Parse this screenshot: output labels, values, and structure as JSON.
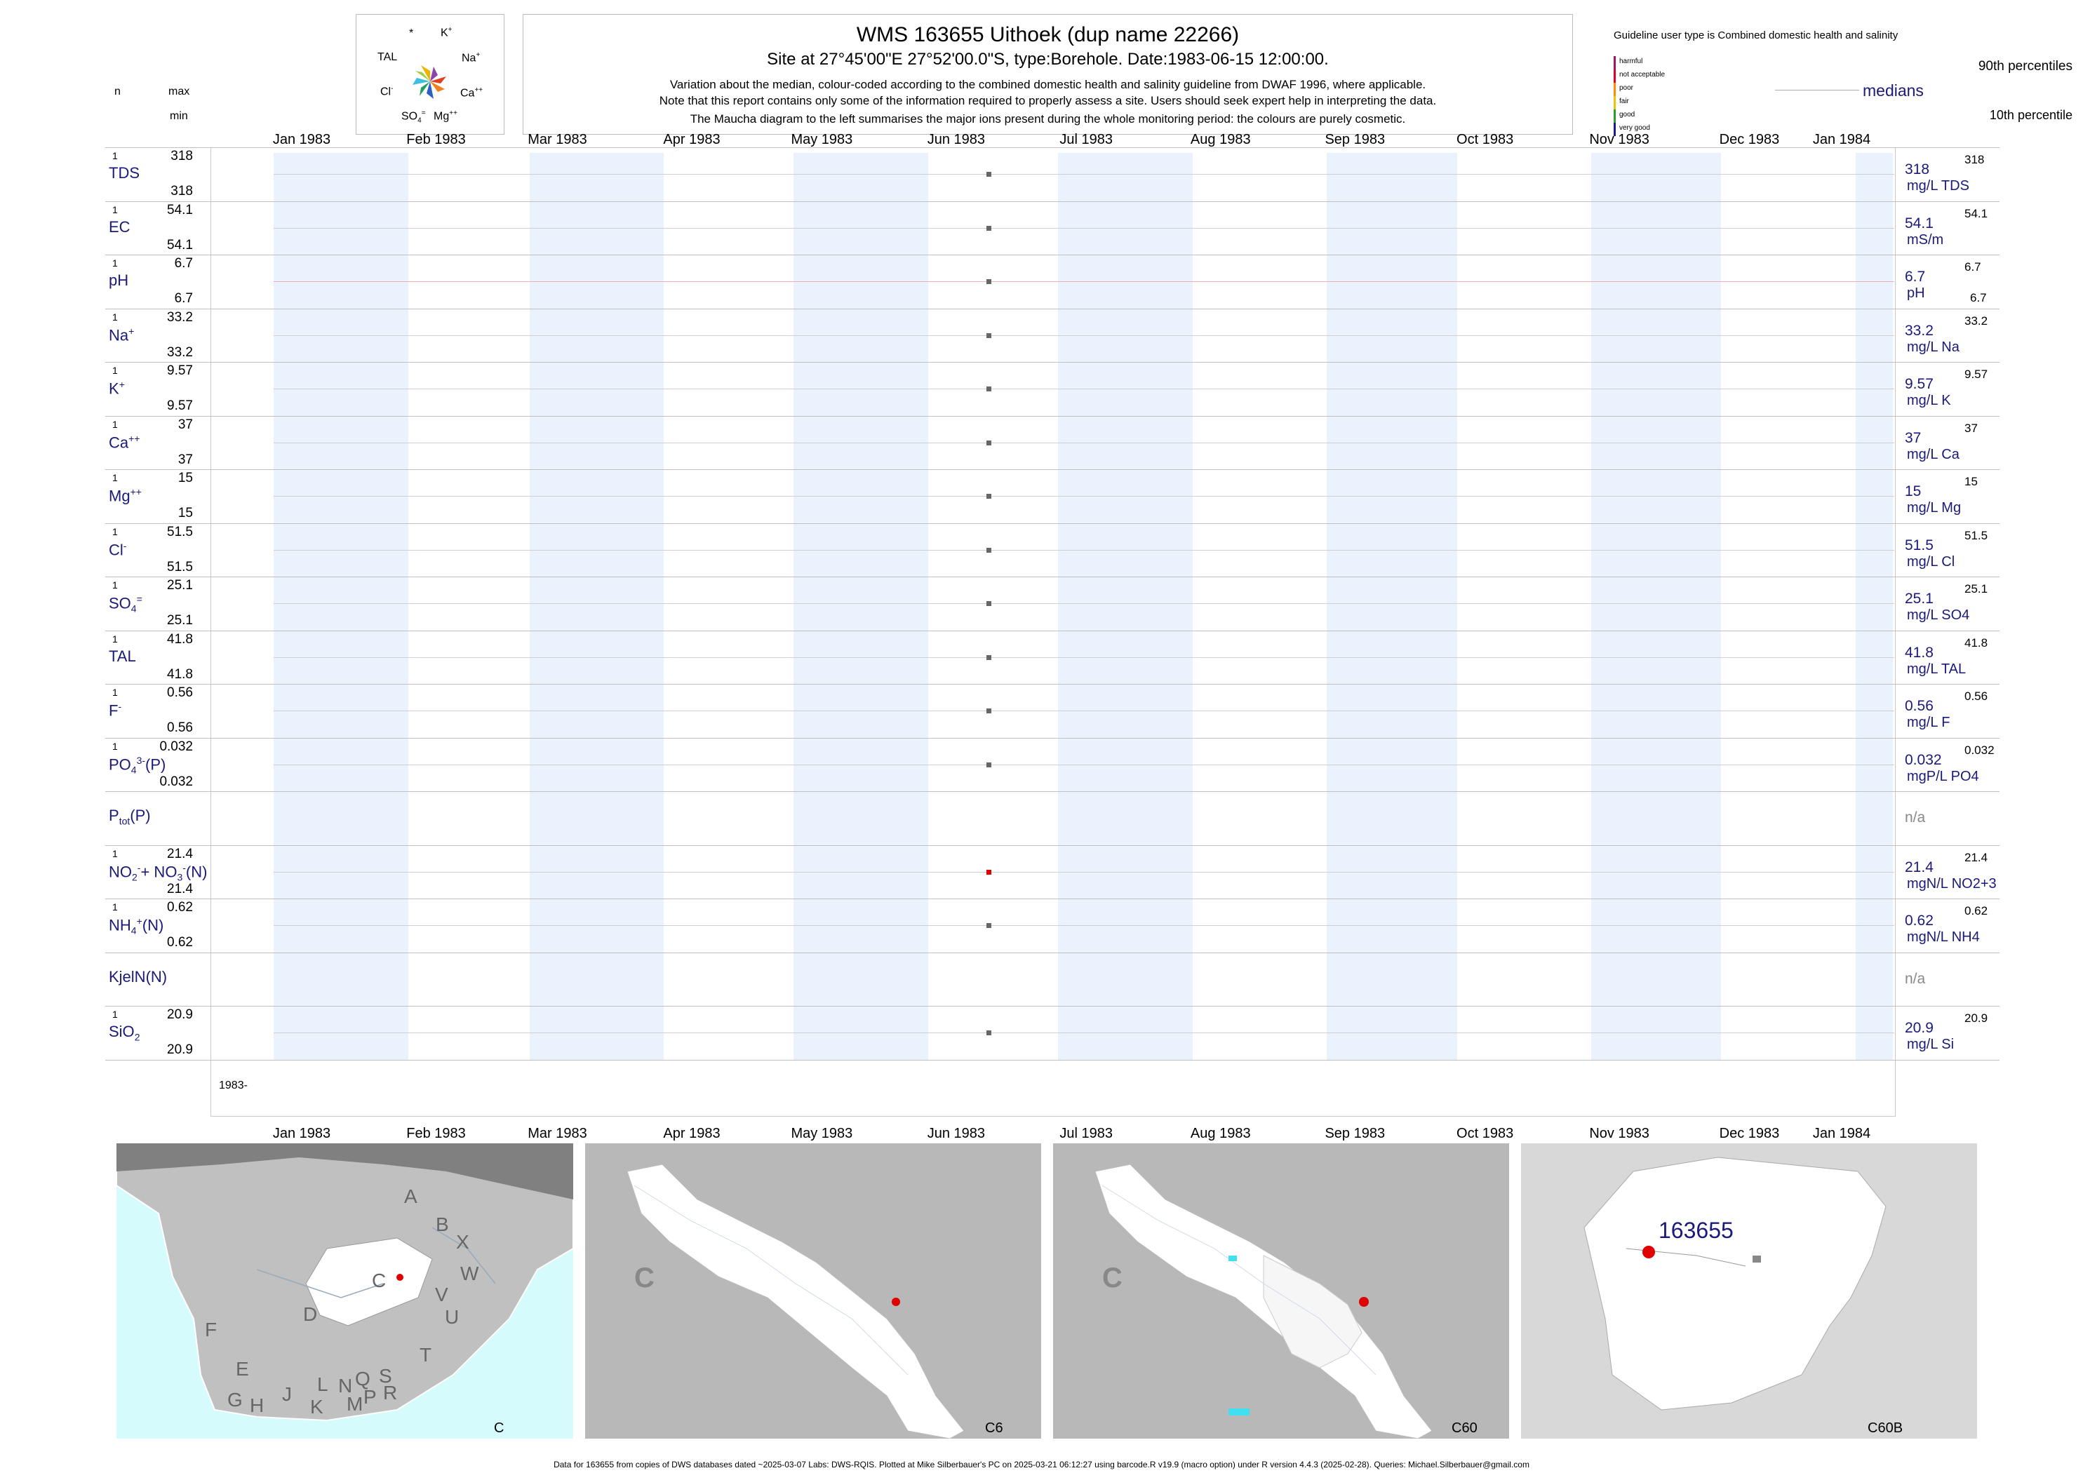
{
  "header": {
    "title": "WMS 163655  Uithoek (dup name 22266)",
    "subtitle": "Site at 27°45'00\"E 27°52'00.0\"S, type:Borehole. Date:1983-06-15 12:00:00.",
    "note1": "Variation about the median,  colour-coded according to the combined domestic health and salinity guideline from DWAF 1996, where applicable.",
    "note2": "Note that this report contains only some of the information required to properly assess a site. Users should seek expert help in interpreting the data.",
    "note3": "The Maucha diagram to the left summarises the major ions present during the whole monitoring period: the colours are purely cosmetic."
  },
  "left_header": {
    "n": "n",
    "max": "max",
    "min": "min"
  },
  "maucha": {
    "labels": {
      "star": "*",
      "k": "K",
      "k_sup": "+",
      "tal": "TAL",
      "na": "Na",
      "na_sup": "+",
      "cl": "Cl",
      "cl_sup": "-",
      "ca": "Ca",
      "ca_sup": "++",
      "so4": "SO",
      "so4_sub": "4",
      "so4_sup": "=",
      "mg": "Mg",
      "mg_sup": "++"
    }
  },
  "legend": {
    "title": "Guideline user type is Combined domestic health and salinity",
    "categories": [
      "harmful",
      "not acceptable",
      "poor",
      "fair",
      "good",
      "very good"
    ],
    "category_colors": [
      "#a01464",
      "#e0002a",
      "#ff8c00",
      "#e6c800",
      "#2aa02a",
      "#1a1aa0"
    ],
    "p90": "90th percentiles",
    "medians": "medians",
    "p10": "10th percentile"
  },
  "chart_data": {
    "type": "scatter",
    "x_axis": {
      "ticks": [
        "Jan 1983",
        "Feb 1983",
        "Mar 1983",
        "Apr 1983",
        "May 1983",
        "Jun 1983",
        "Jul 1983",
        "Aug 1983",
        "Sep 1983",
        "Oct 1983",
        "Nov 1983",
        "Dec 1983",
        "Jan 1984"
      ],
      "range": [
        "1983-01-01",
        "1984-01-01"
      ]
    },
    "sample_date": "1983-06-15",
    "bottom_label": "1983-",
    "rows": [
      {
        "id": "tds",
        "label": "TDS",
        "n": "1",
        "max": "318",
        "min": "318",
        "value": "318",
        "unit": "mg/L TDS",
        "rmax": "318",
        "rmin": "",
        "color": "#666666"
      },
      {
        "id": "ec",
        "label": "EC",
        "n": "1",
        "max": "54.1",
        "min": "54.1",
        "value": "54.1",
        "unit": "mS/m",
        "rmax": "54.1",
        "rmin": "",
        "color": "#666666"
      },
      {
        "id": "ph",
        "label": "pH",
        "n": "1",
        "max": "6.7",
        "min": "6.7",
        "value": "6.7",
        "unit": "pH",
        "rmax": "6.7",
        "rmin": "6.7",
        "color": "#666666"
      },
      {
        "id": "na",
        "label": "Na",
        "label_sup": "+",
        "n": "1",
        "max": "33.2",
        "min": "33.2",
        "value": "33.2",
        "unit": "mg/L Na",
        "rmax": "33.2",
        "rmin": "",
        "color": "#666666"
      },
      {
        "id": "k",
        "label": "K",
        "label_sup": "+",
        "n": "1",
        "max": "9.57",
        "min": "9.57",
        "value": "9.57",
        "unit": "mg/L K",
        "rmax": "9.57",
        "rmin": "",
        "color": "#666666"
      },
      {
        "id": "ca",
        "label": "Ca",
        "label_sup": "++",
        "n": "1",
        "max": "37",
        "min": "37",
        "value": "37",
        "unit": "mg/L Ca",
        "rmax": "37",
        "rmin": "",
        "color": "#666666"
      },
      {
        "id": "mg",
        "label": "Mg",
        "label_sup": "++",
        "n": "1",
        "max": "15",
        "min": "15",
        "value": "15",
        "unit": "mg/L Mg",
        "rmax": "15",
        "rmin": "",
        "color": "#666666"
      },
      {
        "id": "cl",
        "label": "Cl",
        "label_sup": "-",
        "n": "1",
        "max": "51.5",
        "min": "51.5",
        "value": "51.5",
        "unit": "mg/L Cl",
        "rmax": "51.5",
        "rmin": "",
        "color": "#666666"
      },
      {
        "id": "so4",
        "label": "SO",
        "label_sub": "4",
        "label_sup": "=",
        "n": "1",
        "max": "25.1",
        "min": "25.1",
        "value": "25.1",
        "unit": "mg/L SO4",
        "rmax": "25.1",
        "rmin": "",
        "color": "#666666"
      },
      {
        "id": "tal",
        "label": "TAL",
        "n": "1",
        "max": "41.8",
        "min": "41.8",
        "value": "41.8",
        "unit": "mg/L TAL",
        "rmax": "41.8",
        "rmin": "",
        "color": "#666666"
      },
      {
        "id": "f",
        "label": "F",
        "label_sup": "-",
        "n": "1",
        "max": "0.56",
        "min": "0.56",
        "value": "0.56",
        "unit": "mg/L F",
        "rmax": "0.56",
        "rmin": "",
        "color": "#666666"
      },
      {
        "id": "po4",
        "label": "PO",
        "label_sub": "4",
        "label_sup": "3-",
        "label_tail": "(P)",
        "n": "1",
        "max": "0.032",
        "min": "0.032",
        "value": "0.032",
        "unit": "mgP/L PO4",
        "rmax": "0.032",
        "rmin": "",
        "color": "#666666"
      },
      {
        "id": "ptot",
        "label": "P",
        "label_sub": "tot",
        "label_tail": "(P)",
        "n": "",
        "max": "",
        "min": "",
        "value": "n/a",
        "unit": "",
        "rmax": "",
        "rmin": "",
        "color": ""
      },
      {
        "id": "no3",
        "label": "NO",
        "label_sub": "2",
        "label_sup": "-",
        "label_tail": "+ NO",
        "label_sub2": "3",
        "label_sup2": "-",
        "label_tail2": "(N)",
        "n": "1",
        "max": "21.4",
        "min": "21.4",
        "value": "21.4",
        "unit": "mgN/L NO2+3",
        "rmax": "21.4",
        "rmin": "",
        "color": "#e00000"
      },
      {
        "id": "nh4",
        "label": "NH",
        "label_sub": "4",
        "label_sup": "+",
        "label_tail": "(N)",
        "n": "1",
        "max": "0.62",
        "min": "0.62",
        "value": "0.62",
        "unit": "mgN/L NH4",
        "rmax": "0.62",
        "rmin": "",
        "color": "#666666"
      },
      {
        "id": "kjel",
        "label": "KjelN(N)",
        "n": "",
        "max": "",
        "min": "",
        "value": "n/a",
        "unit": "",
        "rmax": "",
        "rmin": "",
        "color": ""
      },
      {
        "id": "sio2",
        "label": "SiO",
        "label_sub": "2",
        "n": "1",
        "max": "20.9",
        "min": "20.9",
        "value": "20.9",
        "unit": "mg/L Si",
        "rmax": "20.9",
        "rmin": "",
        "color": "#666666"
      }
    ]
  },
  "maps": [
    {
      "caption": "C",
      "letters": [
        "A",
        "B",
        "X",
        "W",
        "C",
        "V",
        "U",
        "D",
        "T",
        "F",
        "E",
        "G",
        "H",
        "J",
        "K",
        "L",
        "M",
        "N",
        "P",
        "Q",
        "R",
        "S"
      ]
    },
    {
      "caption": "C6",
      "region_letter": "C"
    },
    {
      "caption": "C60",
      "region_letter": "C"
    },
    {
      "caption": "C60B",
      "site_label": "163655"
    }
  ],
  "footer": "Data for 163655 from copies of DWS databases dated ~2025-03-07 Labs: DWS-RQIS. Plotted at Mike Silberbauer's PC on 2025-03-21 06:12:27 using barcode.R v19.9 (macro option) under R version 4.4.3 (2025-02-28). Queries: Michael.Silberbauer@gmail.com"
}
